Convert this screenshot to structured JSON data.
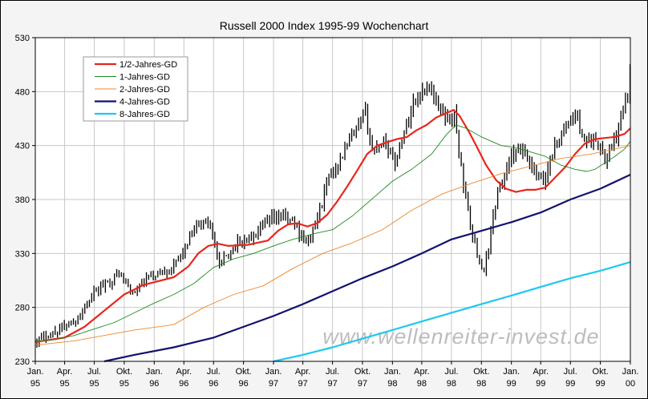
{
  "chart_data": {
    "type": "line",
    "title": "Russell 2000 Index 1995-99 Wochenchart",
    "xlabel": "",
    "ylabel": "",
    "ylim": [
      230,
      530
    ],
    "yticks": [
      230,
      280,
      330,
      380,
      430,
      480,
      530
    ],
    "xlim": [
      "1995-01-01",
      "2000-01-01"
    ],
    "xticks": [
      {
        "date": "1995-01-01",
        "line1": "Jan.",
        "line2": "95"
      },
      {
        "date": "1995-04-01",
        "line1": "Apr.",
        "line2": "95"
      },
      {
        "date": "1995-07-01",
        "line1": "Jul.",
        "line2": "95"
      },
      {
        "date": "1995-10-01",
        "line1": "Okt.",
        "line2": "95"
      },
      {
        "date": "1996-01-01",
        "line1": "Jan.",
        "line2": "96"
      },
      {
        "date": "1996-04-01",
        "line1": "Apr.",
        "line2": "96"
      },
      {
        "date": "1996-07-01",
        "line1": "Jul.",
        "line2": "96"
      },
      {
        "date": "1996-10-01",
        "line1": "Okt.",
        "line2": "96"
      },
      {
        "date": "1997-01-01",
        "line1": "Jan.",
        "line2": "97"
      },
      {
        "date": "1997-04-01",
        "line1": "Apr.",
        "line2": "97"
      },
      {
        "date": "1997-07-01",
        "line1": "Jul.",
        "line2": "97"
      },
      {
        "date": "1997-10-01",
        "line1": "Okt.",
        "line2": "97"
      },
      {
        "date": "1998-01-01",
        "line1": "Jan.",
        "line2": "98"
      },
      {
        "date": "1998-04-01",
        "line1": "Apr.",
        "line2": "98"
      },
      {
        "date": "1998-07-01",
        "line1": "Jul.",
        "line2": "98"
      },
      {
        "date": "1998-10-01",
        "line1": "Okt.",
        "line2": "98"
      },
      {
        "date": "1999-01-01",
        "line1": "Jan.",
        "line2": "99"
      },
      {
        "date": "1999-04-01",
        "line1": "Apr.",
        "line2": "99"
      },
      {
        "date": "1999-07-01",
        "line1": "Jul.",
        "line2": "99"
      },
      {
        "date": "1999-10-01",
        "line1": "Okt.",
        "line2": "99"
      },
      {
        "date": "2000-01-01",
        "line1": "Jan.",
        "line2": "00"
      }
    ],
    "grid": true,
    "legend_position": "top-left",
    "watermark": "www.wellenreiter-invest.de",
    "price_bars": {
      "color": "#000000",
      "anchors": [
        [
          "1995-01-06",
          250
        ],
        [
          "1995-03-03",
          258
        ],
        [
          "1995-05-05",
          268
        ],
        [
          "1995-07-07",
          295
        ],
        [
          "1995-09-15",
          312
        ],
        [
          "1995-10-27",
          292
        ],
        [
          "1995-12-15",
          308
        ],
        [
          "1996-03-01",
          318
        ],
        [
          "1996-05-24",
          360
        ],
        [
          "1996-06-21",
          358
        ],
        [
          "1996-07-19",
          318
        ],
        [
          "1996-08-02",
          325
        ],
        [
          "1996-09-13",
          340
        ],
        [
          "1996-11-01",
          345
        ],
        [
          "1996-12-20",
          360
        ],
        [
          "1997-01-24",
          365
        ],
        [
          "1997-02-28",
          360
        ],
        [
          "1997-04-11",
          340
        ],
        [
          "1997-05-02",
          350
        ],
        [
          "1997-06-20",
          400
        ],
        [
          "1997-08-08",
          425
        ],
        [
          "1997-10-10",
          460
        ],
        [
          "1997-10-31",
          425
        ],
        [
          "1997-12-05",
          435
        ],
        [
          "1998-01-09",
          415
        ],
        [
          "1998-03-06",
          470
        ],
        [
          "1998-04-24",
          487
        ],
        [
          "1998-05-22",
          465
        ],
        [
          "1998-06-19",
          455
        ],
        [
          "1998-07-10",
          458
        ],
        [
          "1998-08-07",
          395
        ],
        [
          "1998-09-04",
          345
        ],
        [
          "1998-10-09",
          310
        ],
        [
          "1998-11-13",
          378
        ],
        [
          "1998-12-31",
          420
        ],
        [
          "1999-02-05",
          425
        ],
        [
          "1999-03-12",
          405
        ],
        [
          "1999-04-09",
          395
        ],
        [
          "1999-05-14",
          430
        ],
        [
          "1999-06-25",
          450
        ],
        [
          "1999-07-16",
          460
        ],
        [
          "1999-08-13",
          435
        ],
        [
          "1999-09-17",
          438
        ],
        [
          "1999-10-15",
          415
        ],
        [
          "1999-11-19",
          440
        ],
        [
          "1999-12-24",
          478
        ],
        [
          "1999-12-31",
          497
        ]
      ]
    },
    "series": [
      {
        "name": "1/2-Jahres-GD",
        "color": "#e8261c",
        "width": 2.2,
        "points": [
          [
            "1995-01-01",
            248
          ],
          [
            "1995-04-01",
            252
          ],
          [
            "1995-06-01",
            262
          ],
          [
            "1995-08-01",
            277
          ],
          [
            "1995-10-01",
            292
          ],
          [
            "1995-12-01",
            301
          ],
          [
            "1996-03-01",
            308
          ],
          [
            "1996-04-15",
            318
          ],
          [
            "1996-05-15",
            330
          ],
          [
            "1996-06-15",
            337
          ],
          [
            "1996-07-15",
            339
          ],
          [
            "1996-08-15",
            337
          ],
          [
            "1996-10-15",
            338
          ],
          [
            "1996-12-15",
            342
          ],
          [
            "1997-01-15",
            351
          ],
          [
            "1997-02-15",
            357
          ],
          [
            "1997-03-15",
            358
          ],
          [
            "1997-04-15",
            355
          ],
          [
            "1997-05-15",
            358
          ],
          [
            "1997-06-15",
            366
          ],
          [
            "1997-07-15",
            378
          ],
          [
            "1997-08-15",
            392
          ],
          [
            "1997-09-15",
            407
          ],
          [
            "1997-10-15",
            422
          ],
          [
            "1997-11-15",
            430
          ],
          [
            "1997-12-15",
            433
          ],
          [
            "1998-01-15",
            436
          ],
          [
            "1998-02-15",
            438
          ],
          [
            "1998-03-15",
            444
          ],
          [
            "1998-04-15",
            449
          ],
          [
            "1998-05-15",
            456
          ],
          [
            "1998-06-15",
            460
          ],
          [
            "1998-07-07",
            463
          ],
          [
            "1998-07-25",
            458
          ],
          [
            "1998-08-25",
            442
          ],
          [
            "1998-09-15",
            430
          ],
          [
            "1998-10-15",
            412
          ],
          [
            "1998-11-15",
            398
          ],
          [
            "1998-12-15",
            390
          ],
          [
            "1999-01-15",
            387
          ],
          [
            "1999-02-15",
            389
          ],
          [
            "1999-03-15",
            389
          ],
          [
            "1999-04-15",
            391
          ],
          [
            "1999-05-01",
            396
          ],
          [
            "1999-06-15",
            410
          ],
          [
            "1999-07-15",
            422
          ],
          [
            "1999-08-15",
            432
          ],
          [
            "1999-09-15",
            436
          ],
          [
            "1999-10-15",
            437
          ],
          [
            "1999-11-15",
            438
          ],
          [
            "1999-12-15",
            441
          ],
          [
            "2000-01-01",
            446
          ]
        ]
      },
      {
        "name": "1-Jahres-GD",
        "color": "#1e8a1e",
        "width": 0.9,
        "points": [
          [
            "1995-01-01",
            249
          ],
          [
            "1995-03-01",
            250
          ],
          [
            "1995-05-01",
            254
          ],
          [
            "1995-07-01",
            260
          ],
          [
            "1995-09-01",
            266
          ],
          [
            "1995-11-01",
            275
          ],
          [
            "1996-01-01",
            284
          ],
          [
            "1996-03-01",
            292
          ],
          [
            "1996-05-01",
            302
          ],
          [
            "1996-07-01",
            317
          ],
          [
            "1996-09-01",
            325
          ],
          [
            "1996-11-01",
            330
          ],
          [
            "1997-01-01",
            337
          ],
          [
            "1997-03-01",
            343
          ],
          [
            "1997-05-01",
            348
          ],
          [
            "1997-07-01",
            352
          ],
          [
            "1997-09-01",
            365
          ],
          [
            "1997-11-01",
            381
          ],
          [
            "1998-01-01",
            397
          ],
          [
            "1998-03-01",
            408
          ],
          [
            "1998-05-01",
            422
          ],
          [
            "1998-06-15",
            440
          ],
          [
            "1998-07-15",
            449
          ],
          [
            "1998-08-15",
            446
          ],
          [
            "1998-10-01",
            438
          ],
          [
            "1998-12-01",
            430
          ],
          [
            "1999-01-15",
            428
          ],
          [
            "1999-03-01",
            424
          ],
          [
            "1999-04-15",
            420
          ],
          [
            "1999-06-01",
            412
          ],
          [
            "1999-07-15",
            408
          ],
          [
            "1999-08-20",
            406
          ],
          [
            "1999-09-15",
            408
          ],
          [
            "1999-10-15",
            414
          ],
          [
            "1999-11-15",
            420
          ],
          [
            "1999-12-15",
            427
          ],
          [
            "2000-01-01",
            434
          ]
        ]
      },
      {
        "name": "2-Jahres-GD",
        "color": "#f0862a",
        "width": 0.9,
        "points": [
          [
            "1995-01-01",
            245
          ],
          [
            "1995-05-01",
            249
          ],
          [
            "1995-08-01",
            254
          ],
          [
            "1995-11-01",
            259
          ],
          [
            "1996-03-01",
            264
          ],
          [
            "1996-06-01",
            280
          ],
          [
            "1996-09-01",
            292
          ],
          [
            "1996-12-01",
            300
          ],
          [
            "1997-03-01",
            316
          ],
          [
            "1997-06-01",
            330
          ],
          [
            "1997-09-01",
            340
          ],
          [
            "1997-12-01",
            352
          ],
          [
            "1998-03-01",
            370
          ],
          [
            "1998-06-01",
            385
          ],
          [
            "1998-09-01",
            395
          ],
          [
            "1998-12-01",
            404
          ],
          [
            "1999-03-01",
            411
          ],
          [
            "1999-06-01",
            418
          ],
          [
            "1999-09-01",
            422
          ],
          [
            "1999-12-01",
            428
          ],
          [
            "2000-01-01",
            430
          ]
        ]
      },
      {
        "name": "4-Jahres-GD",
        "color": "#12126e",
        "width": 2.2,
        "points": [
          [
            "1995-08-01",
            230
          ],
          [
            "1995-11-01",
            236
          ],
          [
            "1996-03-01",
            243
          ],
          [
            "1996-07-01",
            252
          ],
          [
            "1996-10-01",
            262
          ],
          [
            "1997-01-01",
            272
          ],
          [
            "1997-04-01",
            283
          ],
          [
            "1997-07-01",
            295
          ],
          [
            "1997-10-01",
            307
          ],
          [
            "1998-01-01",
            318
          ],
          [
            "1998-04-01",
            330
          ],
          [
            "1998-07-01",
            343
          ],
          [
            "1998-10-01",
            351
          ],
          [
            "1999-01-01",
            359
          ],
          [
            "1999-04-01",
            368
          ],
          [
            "1999-07-01",
            380
          ],
          [
            "1999-10-01",
            390
          ],
          [
            "2000-01-01",
            403
          ]
        ]
      },
      {
        "name": "8-Jahres-GD",
        "color": "#1ec8f0",
        "width": 2.2,
        "points": [
          [
            "1997-01-01",
            230
          ],
          [
            "1997-04-01",
            236
          ],
          [
            "1997-07-01",
            243
          ],
          [
            "1997-10-01",
            251
          ],
          [
            "1998-01-01",
            259
          ],
          [
            "1998-04-01",
            267
          ],
          [
            "1998-07-01",
            275
          ],
          [
            "1998-10-01",
            283
          ],
          [
            "1999-01-01",
            291
          ],
          [
            "1999-04-01",
            299
          ],
          [
            "1999-07-01",
            307
          ],
          [
            "1999-10-01",
            314
          ],
          [
            "2000-01-01",
            322
          ]
        ]
      }
    ]
  }
}
